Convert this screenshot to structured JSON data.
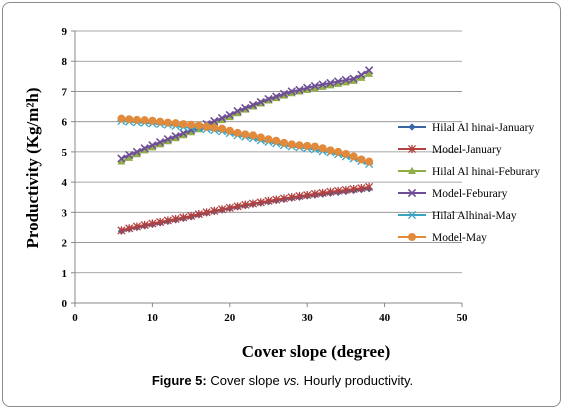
{
  "caption": {
    "figure_label": "Figure 5:",
    "text_before": " Cover slope ",
    "text_italic": "vs.",
    "text_after": " Hourly productivity."
  },
  "chart_data": {
    "type": "line",
    "title": "",
    "xlabel": "Cover slope (degree)",
    "ylabel": "Productivity (Kg/m²h)",
    "xlim": [
      0,
      50
    ],
    "ylim": [
      0,
      9
    ],
    "xticks": [
      0,
      10,
      20,
      30,
      40,
      50
    ],
    "yticks": [
      0,
      1,
      2,
      3,
      4,
      5,
      6,
      7,
      8,
      9
    ],
    "grid": "horizontal",
    "legend_position": "right",
    "x": [
      6,
      7,
      8,
      9,
      10,
      11,
      12,
      13,
      14,
      15,
      16,
      17,
      18,
      19,
      20,
      21,
      22,
      23,
      24,
      25,
      26,
      27,
      28,
      29,
      30,
      31,
      32,
      33,
      34,
      35,
      36,
      37,
      38
    ],
    "series": [
      {
        "name": "Hilal Al hinai-January",
        "color": "#3a66a7",
        "marker": "diamond",
        "values": [
          2.38,
          2.45,
          2.5,
          2.55,
          2.6,
          2.65,
          2.7,
          2.75,
          2.8,
          2.85,
          2.92,
          2.98,
          3.03,
          3.08,
          3.13,
          3.18,
          3.22,
          3.27,
          3.31,
          3.35,
          3.39,
          3.43,
          3.47,
          3.5,
          3.54,
          3.57,
          3.6,
          3.63,
          3.66,
          3.69,
          3.72,
          3.75,
          3.78
        ]
      },
      {
        "name": "Model-January",
        "color": "#b3413f",
        "marker": "star",
        "values": [
          2.4,
          2.47,
          2.53,
          2.58,
          2.63,
          2.68,
          2.73,
          2.78,
          2.83,
          2.88,
          2.94,
          3.0,
          3.05,
          3.1,
          3.15,
          3.2,
          3.25,
          3.29,
          3.33,
          3.38,
          3.42,
          3.46,
          3.5,
          3.54,
          3.57,
          3.61,
          3.64,
          3.68,
          3.71,
          3.74,
          3.77,
          3.8,
          3.84
        ]
      },
      {
        "name": "Hilal Al hinai-Feburary",
        "color": "#8fae45",
        "marker": "triangle",
        "values": [
          4.68,
          4.8,
          4.92,
          5.05,
          5.15,
          5.25,
          5.35,
          5.45,
          5.55,
          5.65,
          5.75,
          5.85,
          5.95,
          6.05,
          6.15,
          6.28,
          6.4,
          6.5,
          6.6,
          6.7,
          6.78,
          6.86,
          6.94,
          7.0,
          7.05,
          7.1,
          7.15,
          7.2,
          7.25,
          7.3,
          7.35,
          7.45,
          7.58
        ]
      },
      {
        "name": "Model-Feburary",
        "color": "#6e4e96",
        "marker": "x",
        "values": [
          4.78,
          4.9,
          5.0,
          5.12,
          5.22,
          5.32,
          5.42,
          5.52,
          5.62,
          5.72,
          5.82,
          5.92,
          6.02,
          6.12,
          6.22,
          6.35,
          6.45,
          6.55,
          6.65,
          6.75,
          6.83,
          6.92,
          7.0,
          7.05,
          7.12,
          7.18,
          7.23,
          7.28,
          7.33,
          7.38,
          7.42,
          7.55,
          7.7
        ]
      },
      {
        "name": "Hilal Alhinai-May",
        "color": "#3aa3c1",
        "marker": "asterisk",
        "values": [
          6.02,
          6.0,
          5.98,
          5.96,
          5.94,
          5.92,
          5.9,
          5.86,
          5.82,
          5.8,
          5.78,
          5.75,
          5.72,
          5.68,
          5.62,
          5.55,
          5.5,
          5.45,
          5.38,
          5.33,
          5.28,
          5.22,
          5.18,
          5.15,
          5.12,
          5.08,
          5.02,
          4.98,
          4.92,
          4.85,
          4.78,
          4.7,
          4.6
        ]
      },
      {
        "name": "Model-May",
        "color": "#e28a3b",
        "marker": "circle",
        "values": [
          6.1,
          6.08,
          6.06,
          6.05,
          6.03,
          6.0,
          5.97,
          5.95,
          5.92,
          5.9,
          5.87,
          5.83,
          5.8,
          5.77,
          5.7,
          5.63,
          5.58,
          5.55,
          5.48,
          5.42,
          5.37,
          5.3,
          5.25,
          5.22,
          5.2,
          5.18,
          5.12,
          5.05,
          5.0,
          4.93,
          4.85,
          4.75,
          4.68
        ]
      }
    ]
  }
}
